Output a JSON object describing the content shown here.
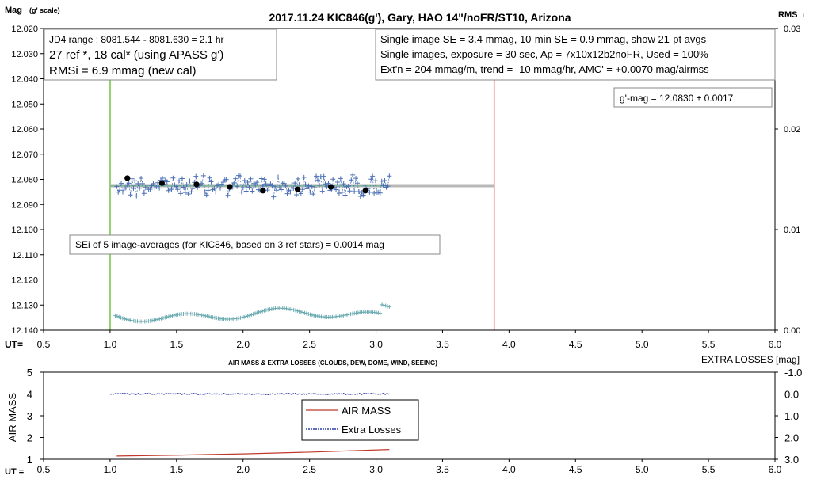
{
  "chart_data": [
    {
      "type": "scatter",
      "title": "2017.11.24  KIC846(g'),  Gary,  HAO  14\"/noFR/ST10,  Arizona",
      "ylabel": "Mag",
      "ylabel_suffix": "(g' scale)",
      "y2label": "RMS",
      "y2label_suffix": "i",
      "xlabel": "UT=",
      "xlim": [
        0.5,
        6.0
      ],
      "ylim": [
        12.02,
        12.14
      ],
      "y_inverted": true,
      "y2lim": [
        0.0,
        0.03
      ],
      "x_ticks": [
        "0.5",
        "1.0",
        "1.5",
        "2.0",
        "2.5",
        "3.0",
        "3.5",
        "4.0",
        "4.5",
        "5.0",
        "5.5",
        "6.0"
      ],
      "y_ticks": [
        "12.020",
        "12.030",
        "12.040",
        "12.050",
        "12.060",
        "12.070",
        "12.080",
        "12.090",
        "12.100",
        "12.110",
        "12.120",
        "12.130",
        "12.140"
      ],
      "y2_ticks": [
        "0.03",
        "0.02",
        "0.01",
        "0.00"
      ],
      "grid": false,
      "vlines": [
        {
          "x": 1.0,
          "color": "#8fd16a"
        },
        {
          "x": 3.89,
          "color": "#f4b6b6"
        }
      ],
      "info_left": [
        "JD4 range : 8081.544 - 8081.630 = 2.1  hr",
        "27 ref *, 18 cal* (using APASS g')",
        "RMSi = 6.9 mmag (new cal)"
      ],
      "info_right": [
        "Single image SE = 3.4 mmag, 10-min SE = 0.9 mmag, show  21-pt avgs",
        "Single images, exposure = 30 sec, Ap = 7x10x12b2noFR,  Used = 100%",
        "Ext'n = 204 mmag/m, trend =  -10 mmag/hr, AMC' = +0.0070 mag/airmss"
      ],
      "gmag_label": "g'-mag = 12.0830 ± 0.0017",
      "sei_label": "SEi of 5 image-averages (for KIC846, based on 3 ref stars) = 0.0014  mag",
      "fit_line": {
        "x": [
          1.0,
          3.89
        ],
        "y": [
          12.0825,
          12.0825
        ],
        "color": "#b8b8b8"
      },
      "averages": {
        "x": [
          1.13,
          1.39,
          1.65,
          1.9,
          2.15,
          2.41,
          2.66,
          2.92
        ],
        "y": [
          12.0795,
          12.0815,
          12.082,
          12.083,
          12.0845,
          12.084,
          12.083,
          12.0845
        ],
        "color": "#000000"
      },
      "single_images": {
        "x_start": 1.05,
        "x_end": 3.1,
        "count": 180,
        "y_center": 12.0825,
        "y_spread": 0.0034,
        "color": "#4a6fb5"
      },
      "rms_points": {
        "x_start": 1.04,
        "x_end": 3.1,
        "count": 150,
        "y2_approx": 0.0015,
        "color": "#6aaab0"
      }
    },
    {
      "type": "line",
      "title": "AIR MASS & EXTRA LOSSES (CLOUDS, DEW, DOME, WIND, SEEING)",
      "ylabel": "AIR MASS",
      "y2label": "EXTRA LOSSES [mag]",
      "xlabel": "UT =",
      "xlim": [
        0.5,
        6.0
      ],
      "ylim": [
        1,
        5
      ],
      "y2lim": [
        3.0,
        -1.0
      ],
      "x_ticks": [
        "0.5",
        "1.0",
        "1.5",
        "2.0",
        "2.5",
        "3.0",
        "3.5",
        "4.0",
        "4.5",
        "5.0",
        "5.5",
        "6.0"
      ],
      "y_ticks": [
        "1",
        "2",
        "3",
        "4",
        "5"
      ],
      "y2_ticks": [
        "-1.0",
        "0.0",
        "1.0",
        "2.0",
        "3.0"
      ],
      "series": [
        {
          "name": "AIR MASS",
          "color": "#c0392b",
          "x": [
            1.05,
            1.5,
            2.0,
            2.5,
            3.1
          ],
          "y": [
            1.15,
            1.19,
            1.25,
            1.33,
            1.45
          ]
        },
        {
          "name": "Extra Losses",
          "color": "#2b3fa8",
          "x": [
            1.0,
            3.1
          ],
          "y2": [
            0.0,
            0.0
          ]
        }
      ],
      "baseline": {
        "x": [
          1.0,
          3.89
        ],
        "y2": [
          0.0,
          0.0
        ],
        "color": "#2a5d6a"
      }
    }
  ]
}
